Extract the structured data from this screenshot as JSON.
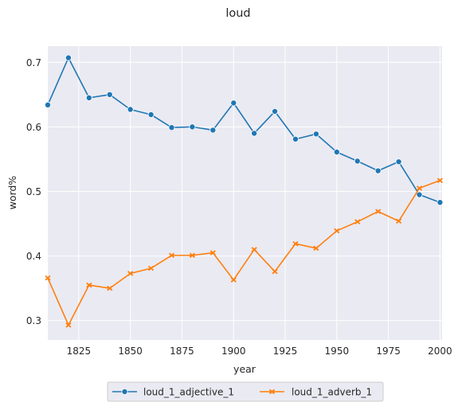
{
  "chart_data": {
    "type": "line",
    "title": "loud",
    "xlabel": "year",
    "ylabel": "word%",
    "xlim": [
      1810,
      2001
    ],
    "ylim": [
      0.27,
      0.725
    ],
    "xticks": [
      "1825",
      "1850",
      "1875",
      "1900",
      "1925",
      "1950",
      "1975",
      "2000"
    ],
    "yticks": [
      "0.3",
      "0.4",
      "0.5",
      "0.6",
      "0.7"
    ],
    "grid": true,
    "legend_position": "bottom-center",
    "x": [
      1810,
      1820,
      1830,
      1840,
      1850,
      1860,
      1870,
      1880,
      1890,
      1900,
      1910,
      1920,
      1930,
      1940,
      1950,
      1960,
      1970,
      1980,
      1990,
      2000
    ],
    "series": [
      {
        "name": "loud_1_adjective_1",
        "color": "#1f77b4",
        "marker": "circle",
        "values": [
          0.634,
          0.707,
          0.645,
          0.65,
          0.627,
          0.619,
          0.599,
          0.6,
          0.595,
          0.637,
          0.59,
          0.624,
          0.581,
          0.589,
          0.561,
          0.547,
          0.532,
          0.546,
          0.495,
          0.483
        ]
      },
      {
        "name": "loud_1_adverb_1",
        "color": "#ff7f0e",
        "marker": "x",
        "values": [
          0.366,
          0.293,
          0.355,
          0.35,
          0.373,
          0.381,
          0.401,
          0.401,
          0.405,
          0.363,
          0.41,
          0.376,
          0.419,
          0.412,
          0.439,
          0.453,
          0.469,
          0.454,
          0.505,
          0.517
        ]
      }
    ]
  }
}
